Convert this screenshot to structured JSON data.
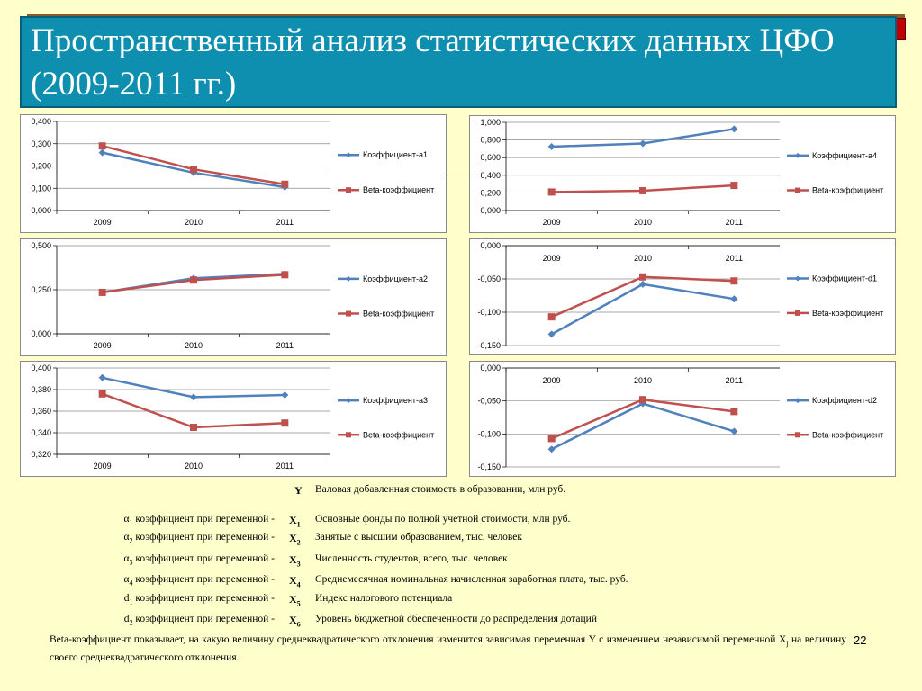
{
  "title": "Пространственный анализ статистических данных ЦФО (2009-2011 гг.)",
  "colors": {
    "series1": "#4F81BD",
    "series2": "#C0504D",
    "title_bg": "#0E8FB0",
    "page_bg": "#FFFFCC"
  },
  "chart_data": [
    {
      "id": "a1",
      "type": "line",
      "categories": [
        "2009",
        "2010",
        "2011"
      ],
      "y_ticks": [
        "0,400",
        "0,300",
        "0,200",
        "0,100",
        "0,000"
      ],
      "ylim": [
        0,
        0.4
      ],
      "series": [
        {
          "name": "Коэффициент-a1",
          "values": [
            0.26,
            0.17,
            0.105
          ]
        },
        {
          "name": "Beta-коэффициент",
          "values": [
            0.29,
            0.185,
            0.118
          ]
        }
      ]
    },
    {
      "id": "a4",
      "type": "line",
      "categories": [
        "2009",
        "2010",
        "2011"
      ],
      "y_ticks": [
        "1,000",
        "0,800",
        "0,600",
        "0,400",
        "0,200",
        "0,000"
      ],
      "ylim": [
        0,
        1.0
      ],
      "series": [
        {
          "name": "Коэффициент-a4",
          "values": [
            0.725,
            0.76,
            0.925
          ]
        },
        {
          "name": "Beta-коэффициент",
          "values": [
            0.21,
            0.225,
            0.285
          ]
        }
      ]
    },
    {
      "id": "a2",
      "type": "line",
      "categories": [
        "2009",
        "2010",
        "2011"
      ],
      "y_ticks": [
        "0,500",
        "0,250",
        "0,000"
      ],
      "ylim": [
        0,
        0.5
      ],
      "series": [
        {
          "name": "Коэффициент-a2",
          "values": [
            0.235,
            0.315,
            0.34
          ]
        },
        {
          "name": "Beta-коэффициент",
          "values": [
            0.235,
            0.305,
            0.335
          ]
        }
      ]
    },
    {
      "id": "d1",
      "type": "line",
      "categories": [
        "2009",
        "2010",
        "2011"
      ],
      "y_ticks": [
        "0,000",
        "-0,050",
        "-0,100",
        "-0,150"
      ],
      "ylim": [
        -0.15,
        0
      ],
      "x_axis_top": true,
      "series": [
        {
          "name": "Коэффициент-d1",
          "values": [
            -0.133,
            -0.058,
            -0.08
          ]
        },
        {
          "name": "Beta-коэффициент",
          "values": [
            -0.107,
            -0.047,
            -0.053
          ]
        }
      ]
    },
    {
      "id": "a3",
      "type": "line",
      "categories": [
        "2009",
        "2010",
        "2011"
      ],
      "y_ticks": [
        "0,400",
        "0,380",
        "0,360",
        "0,340",
        "0,320"
      ],
      "ylim": [
        0.32,
        0.4
      ],
      "series": [
        {
          "name": "Коэффициент-a3",
          "values": [
            0.391,
            0.373,
            0.375
          ]
        },
        {
          "name": "Beta-коэффициент",
          "values": [
            0.376,
            0.345,
            0.349
          ]
        }
      ]
    },
    {
      "id": "d2",
      "type": "line",
      "categories": [
        "2009",
        "2010",
        "2011"
      ],
      "y_ticks": [
        "0,000",
        "-0,050",
        "-0,100",
        "-0,150"
      ],
      "ylim": [
        -0.15,
        0
      ],
      "x_axis_top": true,
      "series": [
        {
          "name": "Коэффициент-d2",
          "values": [
            -0.123,
            -0.054,
            -0.096
          ]
        },
        {
          "name": "Beta-коэффициент",
          "values": [
            -0.107,
            -0.048,
            -0.066
          ]
        }
      ]
    }
  ],
  "legend_rows": {
    "y": {
      "var": "Y",
      "desc": "Валовая добавленная стоимость в образовании, млн руб."
    },
    "x1": {
      "left_sym": "α",
      "left_sub": "1",
      "left_txt": " коэффициент при переменной -",
      "var": "X",
      "sub": "1",
      "desc": "Основные фонды по полной учетной стоимости, млн руб."
    },
    "x2": {
      "left_sym": "α",
      "left_sub": "2",
      "left_txt": " коэффициент при переменной -",
      "var": "X",
      "sub": "2",
      "desc": "Занятые с высшим образованием, тыс. человек"
    },
    "x3": {
      "left_sym": "α",
      "left_sub": "3",
      "left_txt": " коэффициент при переменной -",
      "var": "X",
      "sub": "3",
      "desc": "Численность студентов, всего, тыс. человек"
    },
    "x4": {
      "left_sym": "α",
      "left_sub": "4",
      "left_txt": " коэффициент при переменной -",
      "var": "X",
      "sub": "4",
      "desc": "Среднемесячная номинальная начисленная заработная плата, тыс. руб."
    },
    "x5": {
      "left_sym": "d",
      "left_sub": "1",
      "left_txt": " коэффициент при переменной -",
      "var": "X",
      "sub": "5",
      "desc": "Индекс налогового потенциала"
    },
    "x6": {
      "left_sym": "d",
      "left_sub": "2",
      "left_txt": " коэффициент при переменной -",
      "var": "X",
      "sub": "6",
      "desc": "Уровень бюджетной обеспеченности до распределения дотаций"
    }
  },
  "note": {
    "text_a": "Beta-коэффициент показывает, на какую величину среднеквадратического отклонения изменится зависимая переменная Y с изменением независимой переменной X",
    "sub": "j",
    "text_b": " на величину своего среднеквадратического отклонения."
  },
  "page_number": "22"
}
